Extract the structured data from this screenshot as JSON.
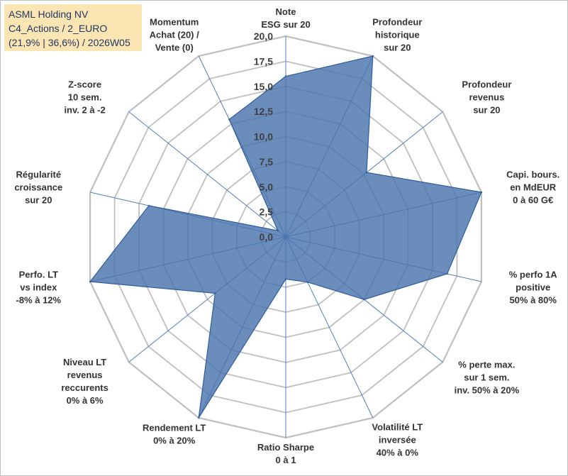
{
  "title_box": {
    "line1": "ASML Holding NV",
    "line2": "C4_Actions / 2_EURO",
    "line3": "(21,9% | 36,6%) / 2026W05"
  },
  "colors": {
    "fill": "#4a74ad",
    "stroke": "#2e5d9a",
    "grid": "#bfbfbf",
    "spoke": "#4f81bd",
    "title_bg": "#fbe5b3",
    "title_text": "#1f3864"
  },
  "chart_data": {
    "type": "radar",
    "r_range": [
      0,
      20
    ],
    "r_ticks": [
      "0,0",
      "2,5",
      "5,0",
      "7,5",
      "10,0",
      "12,5",
      "15,0",
      "17,5",
      "20,0"
    ],
    "axes": [
      {
        "label": [
          "Note",
          "ESG sur 20"
        ],
        "value": 16.0
      },
      {
        "label": [
          "Profondeur",
          "historique",
          "sur 20"
        ],
        "value": 20.0
      },
      {
        "label": [
          "Profondeur",
          "revenus",
          "sur 20"
        ],
        "value": 10.3
      },
      {
        "label": [
          "Capi. bours.",
          "en MdEUR",
          "0 à 60 G€"
        ],
        "value": 20.0
      },
      {
        "label": [
          "% perfo 1A",
          "positive",
          "50% à 80%"
        ],
        "value": 16.5
      },
      {
        "label": [
          "% perte max.",
          "sur 1 sem.",
          "inv. 50% à 20%"
        ],
        "value": 10.0
      },
      {
        "label": [
          "Volatilité LT",
          "inversée",
          "40% à 0%"
        ],
        "value": 5.0
      },
      {
        "label": [
          "Ratio Sharpe",
          "0 à 1"
        ],
        "value": 4.2
      },
      {
        "label": [
          "Rendement LT",
          "0% à 20%"
        ],
        "value": 20.0
      },
      {
        "label": [
          "Niveau LT",
          "revenus",
          "reccurents",
          "0% à 6%"
        ],
        "value": 9.0
      },
      {
        "label": [
          "Perfo. LT",
          "vs index",
          "-8% à 12%"
        ],
        "value": 20.0
      },
      {
        "label": [
          "Régularité",
          "croissance",
          "sur 20"
        ],
        "value": 14.0
      },
      {
        "label": [
          "Z-score",
          "10 sem.",
          "inv. 2 à -2"
        ],
        "value": 1.0
      },
      {
        "label": [
          "Momentum",
          "Achat (20) /",
          "Vente (0)"
        ],
        "value": 13.0
      }
    ]
  }
}
